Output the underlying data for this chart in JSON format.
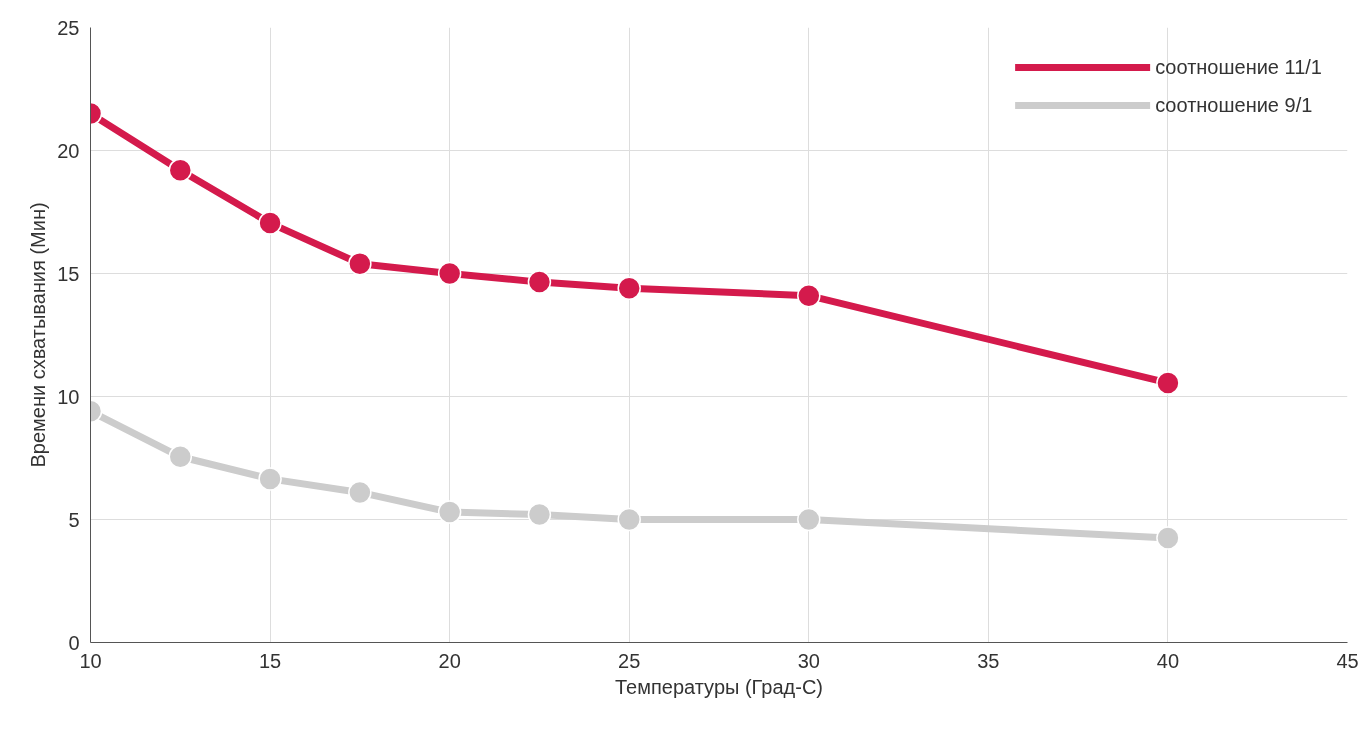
{
  "chart_data": {
    "type": "line",
    "xlabel": "Температуры (Град-С)",
    "ylabel": "Времени схватывания (Мин)",
    "x": [
      10,
      12.5,
      15,
      17.5,
      20,
      22.5,
      25,
      30,
      40
    ],
    "series": [
      {
        "name": "соотношение 11/1",
        "color": "#d41a4c",
        "values": [
          21.5,
          19.2,
          17.05,
          15.4,
          15.0,
          14.65,
          14.4,
          14.1,
          10.55
        ]
      },
      {
        "name": "соотношение 9/1",
        "color": "#cccccc",
        "values": [
          9.4,
          7.55,
          6.65,
          6.1,
          5.3,
          5.2,
          5.0,
          5.0,
          4.25
        ]
      }
    ],
    "xlim": [
      10,
      45
    ],
    "xticks": [
      10,
      15,
      20,
      25,
      30,
      35,
      40,
      45
    ],
    "ylim": [
      0,
      25
    ],
    "yticks": [
      0,
      5,
      10,
      15,
      20,
      25
    ],
    "grid": true,
    "legend": "top right",
    "marker": "circle",
    "line_style": "solid"
  }
}
